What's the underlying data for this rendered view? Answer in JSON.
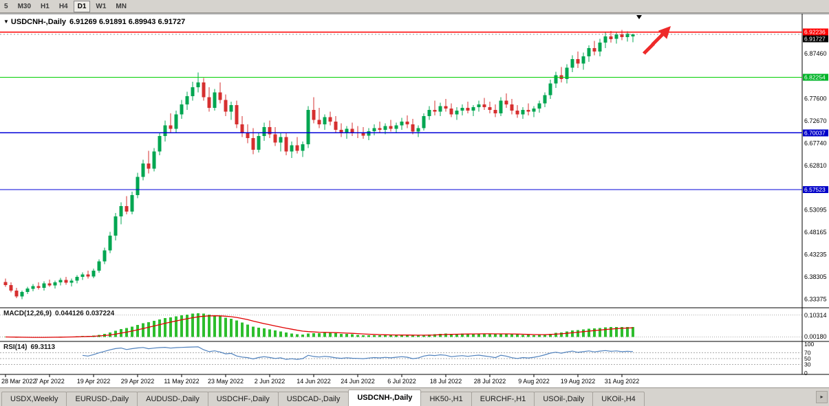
{
  "toolbar": {
    "timeframes": [
      "5",
      "M30",
      "H1",
      "H4",
      "D1",
      "W1",
      "MN"
    ],
    "active": "D1"
  },
  "chart": {
    "marker": "▼",
    "title": "USDCNH-,Daily",
    "ohlc_text": "6.91269 6.91891 6.89943 6.91727"
  },
  "chart_data": {
    "type": "candlestick",
    "symbol": "USDCNH-",
    "timeframe": "Daily",
    "current_bar": {
      "open": 6.91269,
      "high": 6.91891,
      "low": 6.89943,
      "close": 6.91727
    },
    "price_range": {
      "min": 6.318,
      "max": 6.955
    },
    "bars_per_label": 8,
    "x_labels": [
      "28 Mar 2022",
      "7 Apr 2022",
      "19 Apr 2022",
      "29 Apr 2022",
      "11 May 2022",
      "23 May 2022",
      "2 Jun 2022",
      "14 Jun 2022",
      "24 Jun 2022",
      "6 Jul 2022",
      "18 Jul 2022",
      "28 Jul 2022",
      "9 Aug 2022",
      "19 Aug 2022",
      "31 Aug 2022"
    ],
    "candles": [
      [
        6.372,
        6.379,
        6.361,
        6.365
      ],
      [
        6.365,
        6.371,
        6.349,
        6.353
      ],
      [
        6.353,
        6.359,
        6.336,
        6.34
      ],
      [
        6.34,
        6.353,
        6.334,
        6.35
      ],
      [
        6.35,
        6.361,
        6.345,
        6.357
      ],
      [
        6.357,
        6.367,
        6.351,
        6.363
      ],
      [
        6.363,
        6.371,
        6.355,
        6.359
      ],
      [
        6.359,
        6.373,
        6.353,
        6.369
      ],
      [
        6.369,
        6.377,
        6.361,
        6.364
      ],
      [
        6.364,
        6.375,
        6.357,
        6.371
      ],
      [
        6.371,
        6.381,
        6.364,
        6.376
      ],
      [
        6.376,
        6.383,
        6.366,
        6.37
      ],
      [
        6.37,
        6.379,
        6.362,
        6.375
      ],
      [
        6.375,
        6.387,
        6.369,
        6.383
      ],
      [
        6.383,
        6.393,
        6.376,
        6.388
      ],
      [
        6.388,
        6.397,
        6.379,
        6.384
      ],
      [
        6.384,
        6.401,
        6.38,
        6.397
      ],
      [
        6.397,
        6.422,
        6.392,
        6.417
      ],
      [
        6.417,
        6.447,
        6.411,
        6.441
      ],
      [
        6.441,
        6.482,
        6.435,
        6.474
      ],
      [
        6.474,
        6.524,
        6.463,
        6.516
      ],
      [
        6.516,
        6.547,
        6.499,
        6.539
      ],
      [
        6.539,
        6.561,
        6.521,
        6.527
      ],
      [
        6.527,
        6.571,
        6.521,
        6.563
      ],
      [
        6.563,
        6.612,
        6.556,
        6.603
      ],
      [
        6.603,
        6.641,
        6.596,
        6.633
      ],
      [
        6.633,
        6.661,
        6.611,
        6.621
      ],
      [
        6.621,
        6.667,
        6.615,
        6.659
      ],
      [
        6.659,
        6.701,
        6.651,
        6.693
      ],
      [
        6.693,
        6.727,
        6.681,
        6.717
      ],
      [
        6.717,
        6.743,
        6.701,
        6.709
      ],
      [
        6.709,
        6.749,
        6.701,
        6.741
      ],
      [
        6.741,
        6.773,
        6.731,
        6.763
      ],
      [
        6.763,
        6.791,
        6.751,
        6.781
      ],
      [
        6.781,
        6.813,
        6.771,
        6.801
      ],
      [
        6.801,
        6.833,
        6.789,
        6.811
      ],
      [
        6.811,
        6.821,
        6.771,
        6.779
      ],
      [
        6.779,
        6.801,
        6.747,
        6.755
      ],
      [
        6.755,
        6.797,
        6.749,
        6.789
      ],
      [
        6.789,
        6.811,
        6.765,
        6.773
      ],
      [
        6.773,
        6.785,
        6.737,
        6.747
      ],
      [
        6.747,
        6.769,
        6.729,
        6.761
      ],
      [
        6.761,
        6.771,
        6.711,
        6.719
      ],
      [
        6.719,
        6.737,
        6.691,
        6.699
      ],
      [
        6.699,
        6.719,
        6.677,
        6.689
      ],
      [
        6.689,
        6.711,
        6.653,
        6.663
      ],
      [
        6.663,
        6.701,
        6.657,
        6.693
      ],
      [
        6.693,
        6.723,
        6.683,
        6.713
      ],
      [
        6.713,
        6.727,
        6.689,
        6.697
      ],
      [
        6.697,
        6.713,
        6.671,
        6.679
      ],
      [
        6.679,
        6.701,
        6.659,
        6.691
      ],
      [
        6.691,
        6.699,
        6.651,
        6.659
      ],
      [
        6.659,
        6.681,
        6.645,
        6.673
      ],
      [
        6.673,
        6.691,
        6.655,
        6.661
      ],
      [
        6.661,
        6.681,
        6.647,
        6.675
      ],
      [
        6.675,
        6.759,
        6.667,
        6.751
      ],
      [
        6.751,
        6.779,
        6.721,
        6.729
      ],
      [
        6.729,
        6.755,
        6.711,
        6.719
      ],
      [
        6.719,
        6.741,
        6.707,
        6.735
      ],
      [
        6.735,
        6.747,
        6.717,
        6.725
      ],
      [
        6.725,
        6.737,
        6.699,
        6.707
      ],
      [
        6.707,
        6.721,
        6.691,
        6.699
      ],
      [
        6.699,
        6.715,
        6.687,
        6.709
      ],
      [
        6.709,
        6.723,
        6.693,
        6.701
      ],
      [
        6.701,
        6.715,
        6.689,
        6.699
      ],
      [
        6.699,
        6.713,
        6.687,
        6.694
      ],
      [
        6.694,
        6.711,
        6.684,
        6.704
      ],
      [
        6.704,
        6.719,
        6.695,
        6.711
      ],
      [
        6.711,
        6.725,
        6.699,
        6.707
      ],
      [
        6.707,
        6.721,
        6.697,
        6.715
      ],
      [
        6.715,
        6.729,
        6.703,
        6.709
      ],
      [
        6.709,
        6.723,
        6.699,
        6.717
      ],
      [
        6.717,
        6.733,
        6.707,
        6.725
      ],
      [
        6.725,
        6.739,
        6.711,
        6.719
      ],
      [
        6.719,
        6.731,
        6.697,
        6.703
      ],
      [
        6.703,
        6.717,
        6.691,
        6.711
      ],
      [
        6.711,
        6.743,
        6.705,
        6.737
      ],
      [
        6.737,
        6.759,
        6.729,
        6.751
      ],
      [
        6.751,
        6.771,
        6.739,
        6.747
      ],
      [
        6.747,
        6.767,
        6.737,
        6.759
      ],
      [
        6.759,
        6.775,
        6.747,
        6.754
      ],
      [
        6.754,
        6.765,
        6.735,
        6.741
      ],
      [
        6.741,
        6.757,
        6.729,
        6.749
      ],
      [
        6.749,
        6.763,
        6.739,
        6.755
      ],
      [
        6.755,
        6.769,
        6.743,
        6.749
      ],
      [
        6.749,
        6.761,
        6.737,
        6.757
      ],
      [
        6.757,
        6.771,
        6.747,
        6.763
      ],
      [
        6.763,
        6.777,
        6.751,
        6.757
      ],
      [
        6.757,
        6.769,
        6.743,
        6.751
      ],
      [
        6.751,
        6.763,
        6.735,
        6.743
      ],
      [
        6.743,
        6.779,
        6.737,
        6.771
      ],
      [
        6.771,
        6.787,
        6.755,
        6.763
      ],
      [
        6.763,
        6.775,
        6.741,
        6.749
      ],
      [
        6.749,
        6.761,
        6.733,
        6.741
      ],
      [
        6.741,
        6.757,
        6.731,
        6.751
      ],
      [
        6.751,
        6.765,
        6.739,
        6.747
      ],
      [
        6.747,
        6.759,
        6.735,
        6.754
      ],
      [
        6.754,
        6.771,
        6.745,
        6.765
      ],
      [
        6.765,
        6.789,
        6.757,
        6.783
      ],
      [
        6.783,
        6.817,
        6.775,
        6.809
      ],
      [
        6.809,
        6.835,
        6.799,
        6.827
      ],
      [
        6.827,
        6.845,
        6.811,
        6.819
      ],
      [
        6.819,
        6.851,
        6.809,
        6.844
      ],
      [
        6.844,
        6.871,
        6.834,
        6.863
      ],
      [
        6.863,
        6.879,
        6.843,
        6.853
      ],
      [
        6.853,
        6.877,
        6.839,
        6.869
      ],
      [
        6.869,
        6.893,
        6.857,
        6.887
      ],
      [
        6.887,
        6.903,
        6.871,
        6.879
      ],
      [
        6.879,
        6.907,
        6.869,
        6.899
      ],
      [
        6.899,
        6.921,
        6.887,
        6.913
      ],
      [
        6.913,
        6.925,
        6.899,
        6.907
      ],
      [
        6.907,
        6.923,
        6.897,
        6.917
      ],
      [
        6.917,
        6.927,
        6.904,
        6.911
      ],
      [
        6.911,
        6.924,
        6.901,
        6.919
      ],
      [
        6.91269,
        6.91891,
        6.89943,
        6.91727
      ]
    ],
    "hlines": [
      {
        "name": "resistance-line",
        "value": 6.92236,
        "color": "#FF0000"
      },
      {
        "name": "breakout-level-line",
        "value": 6.82254,
        "color": "#00CE00"
      },
      {
        "name": "support-line-1",
        "value": 6.70037,
        "color": "#0000D8"
      },
      {
        "name": "support-line-2",
        "value": 6.57523,
        "color": "#0000D8"
      }
    ],
    "price_axis": {
      "labels": [
        {
          "text": "6.87460",
          "value": 6.8746
        },
        {
          "text": "6.77600",
          "value": 6.776
        },
        {
          "text": "6.72670",
          "value": 6.7267
        },
        {
          "text": "6.67740",
          "value": 6.6774
        },
        {
          "text": "6.62810",
          "value": 6.6281
        },
        {
          "text": "6.53095",
          "value": 6.53095
        },
        {
          "text": "6.48165",
          "value": 6.48165
        },
        {
          "text": "6.43235",
          "value": 6.43235
        },
        {
          "text": "6.38305",
          "value": 6.38305
        },
        {
          "text": "6.33375",
          "value": 6.33375
        }
      ],
      "boxes": [
        {
          "name": "resistance",
          "text": "6.92236",
          "value": 6.92236,
          "bg": "#FF0000",
          "fg": "#FFFFFF"
        },
        {
          "name": "bid",
          "text": "6.91727",
          "value": 6.91727,
          "bg": "#000000",
          "fg": "#FFFFFF"
        },
        {
          "name": "green-level",
          "text": "6.82254",
          "value": 6.82254,
          "bg": "#00B428",
          "fg": "#FFFFFF"
        },
        {
          "name": "blue-level-1",
          "text": "6.70037",
          "value": 6.70037,
          "bg": "#0000C8",
          "fg": "#FFFFFF"
        },
        {
          "name": "blue-level-2",
          "text": "6.57523",
          "value": 6.57523,
          "bg": "#0000C8",
          "fg": "#FFFFFF"
        }
      ]
    },
    "indicators": {
      "macd": {
        "label": "MACD(12,26,9)",
        "values_text": "0.044126 0.037224",
        "fast": 12,
        "slow": 26,
        "signal": 9,
        "axis_labels": [
          "0.10314",
          "0.00180"
        ]
      },
      "rsi": {
        "label": "RSI(14)",
        "value_text": "69.3113",
        "period": 14,
        "levels": [
          70,
          50,
          30
        ],
        "axis_labels": [
          {
            "text": "100",
            "value": 100
          },
          {
            "text": "70",
            "value": 70
          },
          {
            "text": "50",
            "value": 50
          },
          {
            "text": "30",
            "value": 30
          },
          {
            "text": "0",
            "value": 0
          }
        ]
      }
    },
    "annotations": {
      "shift_marker": "triangle-down",
      "arrow_color": "#EE2A2A"
    }
  },
  "tabs": {
    "items": [
      "USDX,Weekly",
      "EURUSD-,Daily",
      "AUDUSD-,Daily",
      "USDCHF-,Daily",
      "USDCAD-,Daily",
      "USDCNH-,Daily",
      "HK50-,H1",
      "EURCHF-,H1",
      "USOil-,Daily",
      "UKOil-,H4"
    ],
    "active_index": 5,
    "scroll_button": "▸"
  },
  "colors": {
    "bull": "#00A651",
    "bear": "#D62F2F",
    "macd_hist": "#2EBE2E",
    "macd_signal": "#E00000",
    "rsi_line": "#4F81BD",
    "toolbar_bg": "#D6D3CE"
  }
}
